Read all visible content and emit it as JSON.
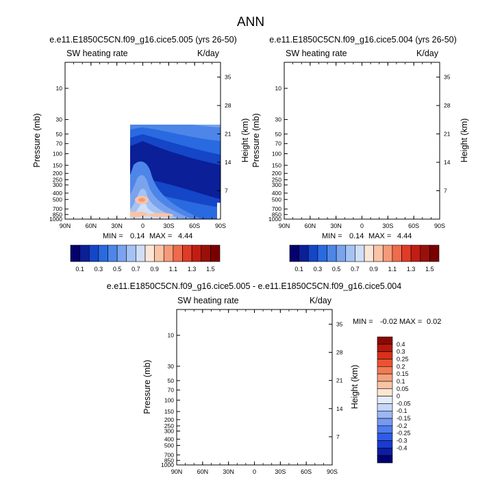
{
  "title": "ANN",
  "colors": {
    "main_scale": [
      "#04006e",
      "#0a1f98",
      "#1446c7",
      "#2a6ae0",
      "#4d86e8",
      "#7aa3ee",
      "#a5c2f4",
      "#cfdff8",
      "#fbe6d6",
      "#f9c3a6",
      "#f59a78",
      "#ee6b4c",
      "#e03b27",
      "#c21d13",
      "#991009",
      "#7a0000"
    ],
    "diff_scale": [
      "#000070",
      "#0b1ea2",
      "#1a3bd1",
      "#2f5ce6",
      "#4e7cee",
      "#7699f2",
      "#9db6f6",
      "#c5d6f8",
      "#e3ecfb",
      "#fde5d3",
      "#f8c4a6",
      "#f4a27c",
      "#f07b55",
      "#e95332",
      "#d8301a",
      "#b4190c",
      "#8a0a02"
    ]
  },
  "chart_data": [
    {
      "type": "heatmap",
      "name": "top-left",
      "title": "e.e11.E1850C5CN.f09_g16.cice5.005 (yrs 26-50)",
      "variable": "SW heating rate",
      "units": "K/day",
      "ylabel": "Pressure (mb)",
      "ylabel_right": "Height (km)",
      "x_ticks": [
        "90N",
        "60N",
        "30N",
        "0",
        "30S",
        "60S",
        "90S"
      ],
      "pressure_ticks": [
        "10",
        "30",
        "50",
        "70",
        "100",
        "150",
        "200",
        "250",
        "300",
        "400",
        "500",
        "700",
        "850",
        "1000"
      ],
      "height_ticks": [
        "35",
        "28",
        "21",
        "14",
        "7"
      ],
      "stats": {
        "min_label": "MIN =",
        "min": "0.14",
        "max_label": "MAX =",
        "max": "4.44"
      },
      "levels": [
        "0.1",
        "0.3",
        "0.5",
        "0.7",
        "0.9",
        "1.1",
        "1.3",
        "1.5"
      ]
    },
    {
      "type": "heatmap",
      "name": "top-right",
      "title": "e.e11.E1850C5CN.f09_g16.cice5.004 (yrs 26-50)",
      "variable": "SW heating rate",
      "units": "K/day",
      "ylabel": "Pressure (mb)",
      "ylabel_right": "Height (km)",
      "x_ticks": [
        "90N",
        "60N",
        "30N",
        "0",
        "30S",
        "60S",
        "90S"
      ],
      "pressure_ticks": [
        "10",
        "30",
        "50",
        "70",
        "100",
        "150",
        "200",
        "250",
        "300",
        "400",
        "500",
        "700",
        "850",
        "1000"
      ],
      "height_ticks": [
        "35",
        "28",
        "21",
        "14",
        "7"
      ],
      "stats": {
        "min_label": "MIN =",
        "min": "0.14",
        "max_label": "MAX =",
        "max": "4.44"
      },
      "levels": [
        "0.1",
        "0.3",
        "0.5",
        "0.7",
        "0.9",
        "1.1",
        "1.3",
        "1.5"
      ]
    },
    {
      "type": "heatmap",
      "name": "difference",
      "title": "e.e11.E1850C5CN.f09_g16.cice5.005 - e.e11.E1850C5CN.f09_g16.cice5.004",
      "variable": "SW heating rate",
      "units": "K/day",
      "ylabel": "Pressure (mb)",
      "ylabel_right": "Height (km)",
      "x_ticks": [
        "90N",
        "60N",
        "30N",
        "0",
        "30S",
        "60S",
        "90S"
      ],
      "pressure_ticks": [
        "10",
        "30",
        "50",
        "70",
        "100",
        "150",
        "200",
        "250",
        "300",
        "400",
        "500",
        "700",
        "850",
        "1000"
      ],
      "height_ticks": [
        "35",
        "28",
        "21",
        "14",
        "7"
      ],
      "stats": {
        "min_label": "MIN =",
        "min": "-0.02",
        "max_label": "MAX =",
        "max": "0.02"
      },
      "levels": [
        "0.4",
        "0.3",
        "0.25",
        "0.2",
        "0.15",
        "0.1",
        "0.05",
        "0",
        "-0.05",
        "-0.1",
        "-0.15",
        "-0.2",
        "-0.25",
        "-0.3",
        "-0.4"
      ]
    }
  ]
}
